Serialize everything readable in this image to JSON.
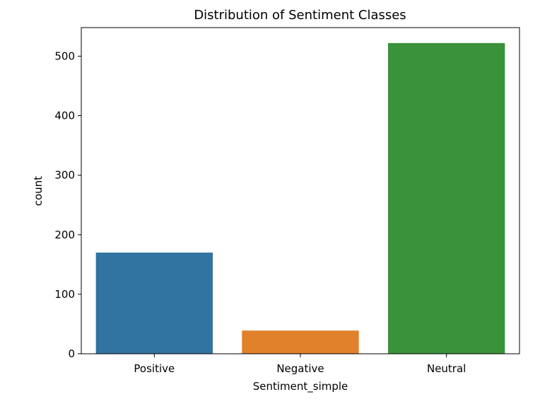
{
  "chart_data": {
    "type": "bar",
    "title": "Distribution of Sentiment Classes",
    "xlabel": "Sentiment_simple",
    "ylabel": "count",
    "categories": [
      "Positive",
      "Negative",
      "Neutral"
    ],
    "values": [
      170,
      39,
      522
    ],
    "colors": [
      "#3274a1",
      "#e1812c",
      "#3a923a"
    ],
    "ylim": [
      0,
      548
    ],
    "yticks": [
      0,
      100,
      200,
      300,
      400,
      500
    ],
    "grid": false,
    "legend": "none"
  }
}
